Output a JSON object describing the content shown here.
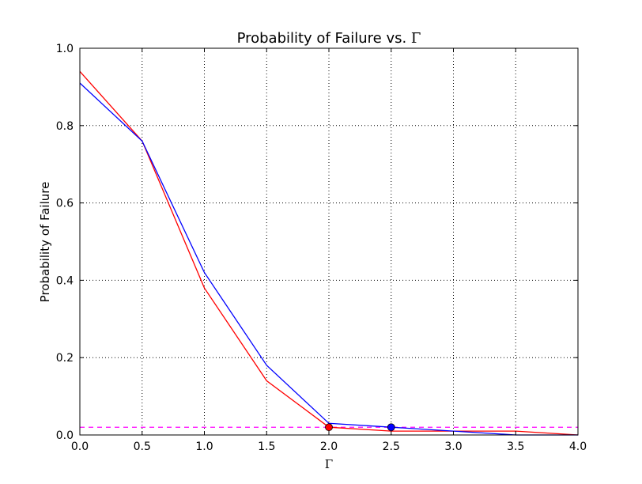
{
  "chart_data": {
    "type": "line",
    "title_text": "Probability of Failure vs. ",
    "title_symbol": "Γ",
    "xlabel": "Γ",
    "ylabel": "Probability of Failure",
    "xlim": [
      0.0,
      4.0
    ],
    "ylim": [
      0.0,
      1.0
    ],
    "x_ticks": [
      "0.0",
      "0.5",
      "1.0",
      "1.5",
      "2.0",
      "2.5",
      "3.0",
      "3.5",
      "4.0"
    ],
    "y_ticks": [
      "0.0",
      "0.2",
      "0.4",
      "0.6",
      "0.8",
      "1.0"
    ],
    "grid": true,
    "x": [
      0.0,
      0.5,
      1.0,
      1.5,
      2.0,
      2.5,
      3.0,
      3.5,
      4.0
    ],
    "series": [
      {
        "color": "#ff0000",
        "values": [
          0.94,
          0.76,
          0.38,
          0.14,
          0.02,
          0.01,
          0.01,
          0.01,
          0.0
        ]
      },
      {
        "color": "#0000ff",
        "values": [
          0.91,
          0.76,
          0.42,
          0.18,
          0.03,
          0.02,
          0.01,
          0.0,
          0.0
        ]
      }
    ],
    "markers": [
      {
        "x": 2.0,
        "y": 0.02,
        "color": "#ff0000"
      },
      {
        "x": 2.5,
        "y": 0.02,
        "color": "#0000ff"
      }
    ],
    "threshold": {
      "y": 0.02,
      "color": "#ff00ff",
      "style": "dashed"
    }
  }
}
